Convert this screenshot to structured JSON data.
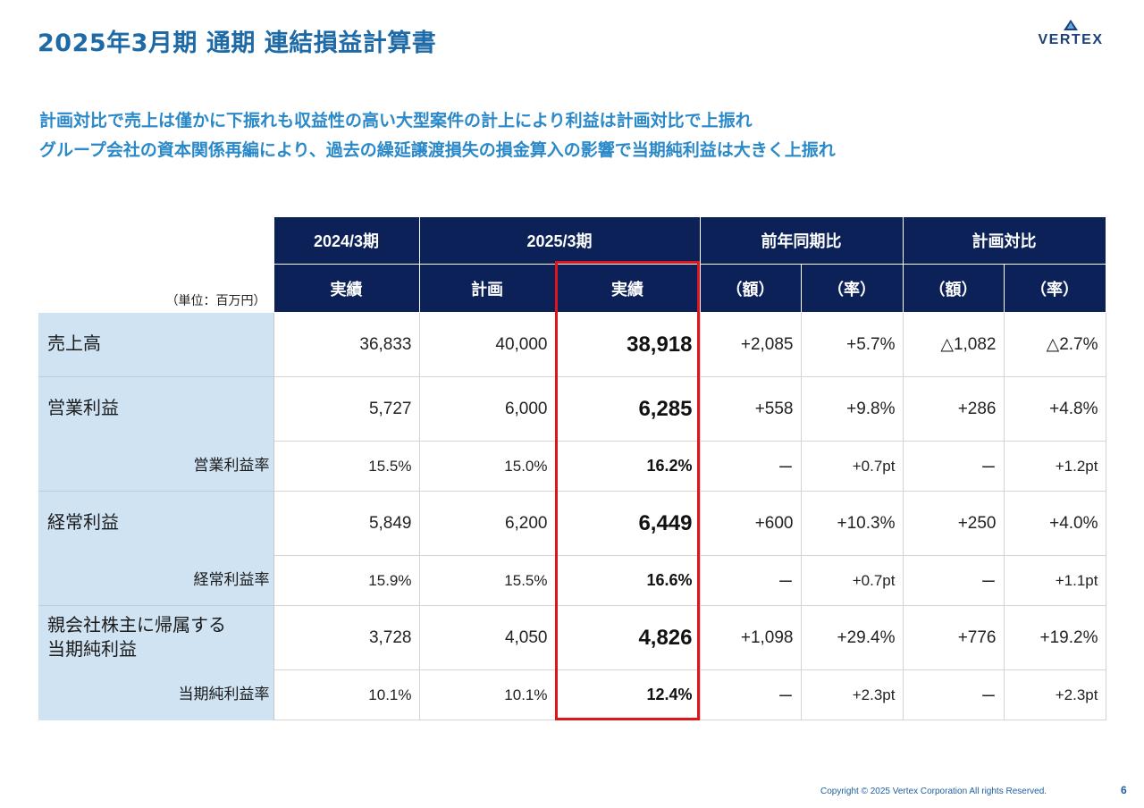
{
  "title": "2025年3月期 通期 連結損益計算書",
  "logo": {
    "text": "VERTEX",
    "color": "#1c3f7a"
  },
  "lead": [
    "計画対比で売上は僅かに下振れも収益性の高い大型案件の計上により利益は計画対比で上振れ",
    "グループ会社の資本関係再編により、過去の繰延譲渡損失の損金算入の影響で当期純利益は大きく上振れ"
  ],
  "table": {
    "unit": "（単位：百万円）",
    "header_top": [
      "2024/3期",
      "2025/3期",
      "前年同期比",
      "計画対比"
    ],
    "header_sub": [
      "実績",
      "計画",
      "実績",
      "（額）",
      "（率）",
      "（額）",
      "（率）"
    ],
    "rows": [
      {
        "label": "売上高",
        "cells": [
          "36,833",
          "40,000",
          "38,918",
          "+2,085",
          "+5.7%",
          "△1,082",
          "△2.7%"
        ]
      },
      {
        "label": "営業利益",
        "cells": [
          "5,727",
          "6,000",
          "6,285",
          "+558",
          "+9.8%",
          "+286",
          "+4.8%"
        ]
      },
      {
        "label": "営業利益率",
        "cells": [
          "15.5%",
          "15.0%",
          "16.2%",
          "ー",
          "+0.7pt",
          "ー",
          "+1.2pt"
        ]
      },
      {
        "label": "経常利益",
        "cells": [
          "5,849",
          "6,200",
          "6,449",
          "+600",
          "+10.3%",
          "+250",
          "+4.0%"
        ]
      },
      {
        "label": "経常利益率",
        "cells": [
          "15.9%",
          "15.5%",
          "16.6%",
          "ー",
          "+0.7pt",
          "ー",
          "+1.1pt"
        ]
      },
      {
        "label": "親会社株主に帰属する当期純利益",
        "label_lines": [
          "親会社株主に帰属する",
          "当期純利益"
        ],
        "cells": [
          "3,728",
          "4,050",
          "4,826",
          "+1,098",
          "+29.4%",
          "+776",
          "+19.2%"
        ]
      },
      {
        "label": "当期純利益率",
        "cells": [
          "10.1%",
          "10.1%",
          "12.4%",
          "ー",
          "+2.3pt",
          "ー",
          "+2.3pt"
        ]
      }
    ]
  },
  "colors": {
    "header_bg": "#0b2158",
    "label_bg": "#cfe3f3",
    "title": "#1e6aa6",
    "lead": "#2a89c9",
    "highlight": "#e0151b"
  },
  "footer": {
    "copyright": "Copyright © 2025 Vertex Corporation All rights Reserved.",
    "page": "6"
  }
}
